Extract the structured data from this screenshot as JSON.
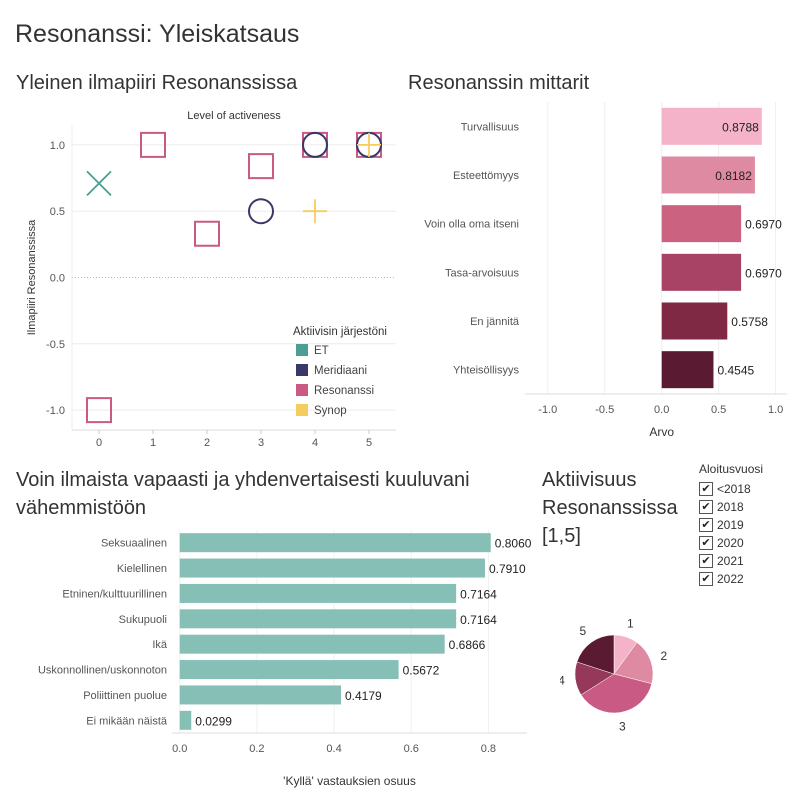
{
  "dashboard_title": "Resonanssi: Yleiskatsaus",
  "sections": {
    "climate": "Yleinen ilmapiiri Resonanssissa",
    "metrics": "Resonanssin mittarit",
    "minority": "Voin ilmaista vapaasti ja yhdenvertaisesti kuuluvani vähemmistöön",
    "activity": "Aktiivisuus Resonanssissa [1,5]"
  },
  "filter": {
    "title": "Aloitusvuosi",
    "items": [
      {
        "label": "<2018",
        "checked": true
      },
      {
        "label": "2018",
        "checked": true
      },
      {
        "label": "2019",
        "checked": true
      },
      {
        "label": "2020",
        "checked": true
      },
      {
        "label": "2021",
        "checked": true
      },
      {
        "label": "2022",
        "checked": true
      }
    ],
    "check_glyph": "✔"
  },
  "chart_data": [
    {
      "id": "climate",
      "type": "scatter",
      "title": "Level of activeness",
      "ylabel": "Ilmapiiri Resonanssissa",
      "xlabel": "",
      "xlim": [
        -0.5,
        5.5
      ],
      "ylim": [
        -1.15,
        1.15
      ],
      "x_ticks": [
        0,
        1,
        2,
        3,
        4,
        5
      ],
      "y_ticks": [
        1.0,
        0.5,
        0.0,
        -0.5,
        -1.0
      ],
      "y_tick_labels": [
        "1.0",
        "0.5",
        "0.0",
        "-0.5",
        "-1.0"
      ],
      "grid": true,
      "zero_line": "dotted",
      "legend": {
        "title": "Aktiivisin järjestöni",
        "position": "right-bottom"
      },
      "series": [
        {
          "name": "ET",
          "color": "#4a9e94",
          "marker": "x",
          "points": [
            {
              "x": 0,
              "y": 0.71
            }
          ]
        },
        {
          "name": "Meridiaani",
          "color": "#3a3868",
          "marker": "circle",
          "points": [
            {
              "x": 3,
              "y": 0.5
            },
            {
              "x": 4,
              "y": 1.0
            },
            {
              "x": 5,
              "y": 1.0
            }
          ]
        },
        {
          "name": "Resonanssi",
          "color": "#c85a84",
          "marker": "square",
          "points": [
            {
              "x": 0,
              "y": -1.0
            },
            {
              "x": 1,
              "y": 1.0
            },
            {
              "x": 2,
              "y": 0.33
            },
            {
              "x": 3,
              "y": 0.84
            },
            {
              "x": 4,
              "y": 1.0
            },
            {
              "x": 5,
              "y": 1.0
            }
          ]
        },
        {
          "name": "Synop",
          "color": "#f7cc5e",
          "marker": "plus",
          "points": [
            {
              "x": 4,
              "y": 0.5
            },
            {
              "x": 5,
              "y": 1.0
            }
          ]
        }
      ]
    },
    {
      "id": "metrics",
      "type": "bar",
      "orientation": "horizontal",
      "xlabel": "Arvo",
      "xlim": [
        -1.2,
        1.1
      ],
      "x_ticks": [
        -1.0,
        -0.5,
        0.0,
        0.5,
        1.0
      ],
      "x_tick_labels": [
        "-1.0",
        "-0.5",
        "0.0",
        "0.5",
        "1.0"
      ],
      "categories": [
        "Turvallisuus",
        "Esteettömyys",
        "Voin olla oma itseni",
        "Tasa-arvoisuus",
        "En jännitä",
        "Yhteisöllisyys"
      ],
      "values": [
        0.8788,
        0.8182,
        0.697,
        0.697,
        0.5758,
        0.4545
      ],
      "value_labels": [
        "0.8788",
        "0.8182",
        "0.6970",
        "0.6970",
        "0.5758",
        "0.4545"
      ],
      "colors": [
        "#f4b3c8",
        "#df8aa3",
        "#cb6280",
        "#a84366",
        "#7f2945",
        "#5a1a31"
      ]
    },
    {
      "id": "minority",
      "type": "bar",
      "orientation": "horizontal",
      "xlabel": "'Kyllä' vastauksien osuus",
      "xlim": [
        -0.02,
        0.9
      ],
      "x_ticks": [
        0.0,
        0.2,
        0.4,
        0.6,
        0.8
      ],
      "x_tick_labels": [
        "0.0",
        "0.2",
        "0.4",
        "0.6",
        "0.8"
      ],
      "categories": [
        "Seksuaalinen",
        "Kielellinen",
        "Etninen/kulttuurillinen",
        "Sukupuoli",
        "Ikä",
        "Uskonnollinen/uskonnoton",
        "Poliittinen puolue",
        "Ei mikään näistä"
      ],
      "values": [
        0.806,
        0.791,
        0.7164,
        0.7164,
        0.6866,
        0.5672,
        0.4179,
        0.0299
      ],
      "value_labels": [
        "0.8060",
        "0.7910",
        "0.7164",
        "0.7164",
        "0.6866",
        "0.5672",
        "0.4179",
        "0.0299"
      ],
      "color": "#86bfb5"
    },
    {
      "id": "activity",
      "type": "pie",
      "labels": [
        "1",
        "2",
        "3",
        "4",
        "5"
      ],
      "values": [
        0.1,
        0.19,
        0.37,
        0.14,
        0.2
      ],
      "colors": [
        "#f4b3c8",
        "#df8aa3",
        "#c85a84",
        "#96385a",
        "#5a1a31"
      ]
    }
  ]
}
